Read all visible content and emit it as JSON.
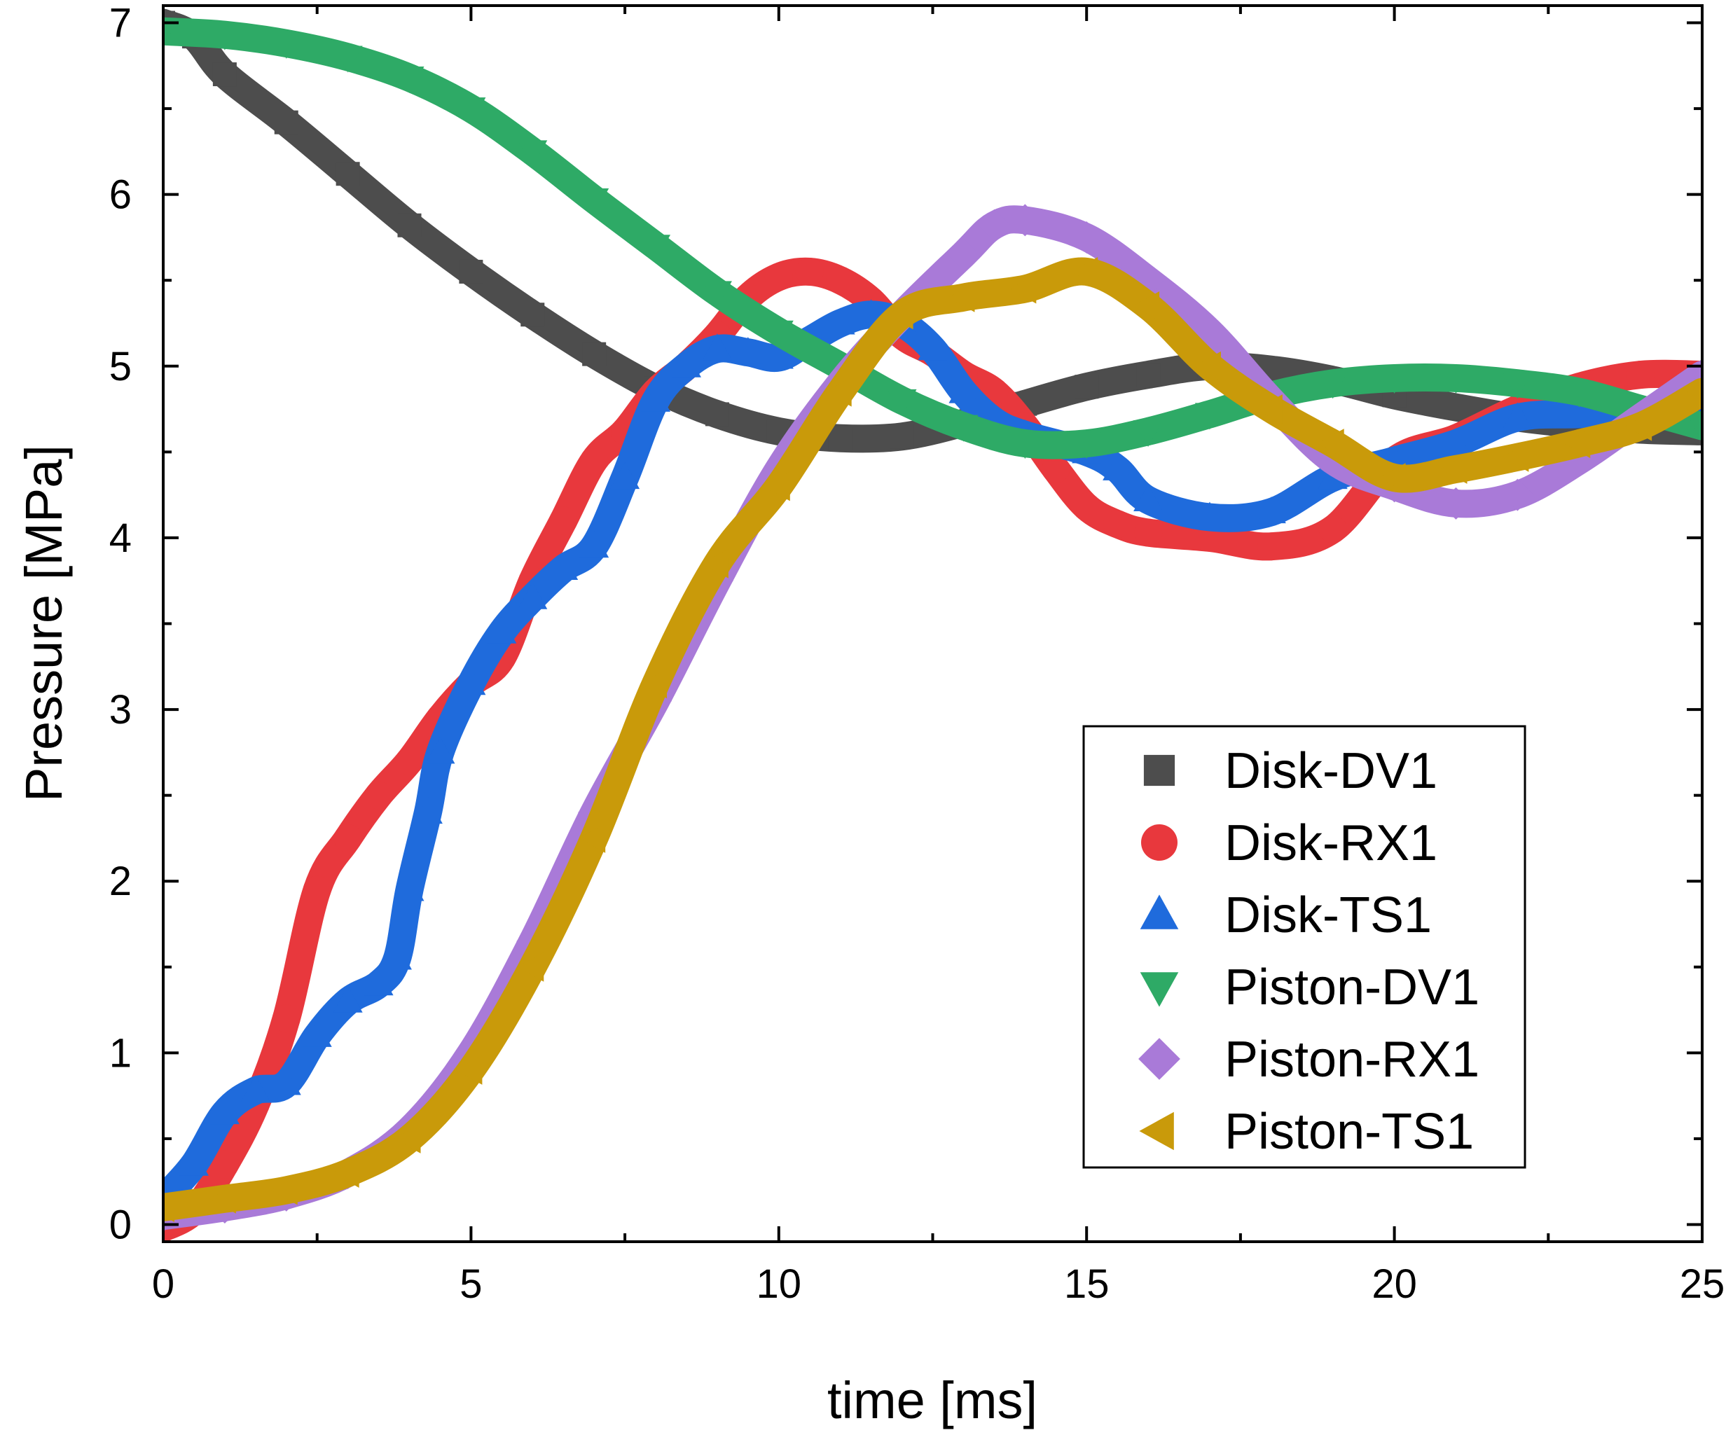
{
  "chart_data": {
    "type": "scatter",
    "title": "",
    "xlabel": "time [ms]",
    "ylabel": "Pressure [MPa]",
    "xlim": [
      0,
      25
    ],
    "ylim": [
      -0.1,
      7.1
    ],
    "xticks": [
      0,
      5,
      10,
      15,
      20,
      25
    ],
    "yticks": [
      0,
      1,
      2,
      3,
      4,
      5,
      6,
      7
    ],
    "x_minor_step": 2.5,
    "y_minor_step": 0.5,
    "grid": false,
    "legend_position": "bottom-right",
    "series": [
      {
        "name": "Disk-DV1",
        "marker": "square",
        "color": "#4d4d4d",
        "points": [
          [
            0,
            7.0
          ],
          [
            0.5,
            6.92
          ],
          [
            1,
            6.7
          ],
          [
            2,
            6.42
          ],
          [
            3,
            6.12
          ],
          [
            4,
            5.82
          ],
          [
            5,
            5.55
          ],
          [
            6,
            5.3
          ],
          [
            7,
            5.07
          ],
          [
            8,
            4.87
          ],
          [
            9,
            4.72
          ],
          [
            10,
            4.62
          ],
          [
            11,
            4.58
          ],
          [
            12,
            4.59
          ],
          [
            13,
            4.67
          ],
          [
            14,
            4.78
          ],
          [
            15,
            4.88
          ],
          [
            16,
            4.95
          ],
          [
            17,
            5.0
          ],
          [
            18,
            4.98
          ],
          [
            19,
            4.92
          ],
          [
            20,
            4.83
          ],
          [
            21,
            4.76
          ],
          [
            22,
            4.7
          ],
          [
            23,
            4.66
          ],
          [
            24,
            4.63
          ],
          [
            25,
            4.62
          ]
        ]
      },
      {
        "name": "Disk-RX1",
        "marker": "circle",
        "color": "#e8383d",
        "points": [
          [
            0,
            -0.02
          ],
          [
            0.5,
            0.08
          ],
          [
            1,
            0.35
          ],
          [
            1.5,
            0.7
          ],
          [
            2,
            1.2
          ],
          [
            2.5,
            1.95
          ],
          [
            3,
            2.25
          ],
          [
            3.5,
            2.5
          ],
          [
            4,
            2.7
          ],
          [
            4.5,
            2.95
          ],
          [
            5,
            3.15
          ],
          [
            5.5,
            3.3
          ],
          [
            6,
            3.75
          ],
          [
            6.5,
            4.1
          ],
          [
            7,
            4.45
          ],
          [
            7.5,
            4.62
          ],
          [
            8,
            4.85
          ],
          [
            8.5,
            5.0
          ],
          [
            9,
            5.18
          ],
          [
            9.5,
            5.4
          ],
          [
            10,
            5.52
          ],
          [
            10.5,
            5.55
          ],
          [
            11,
            5.5
          ],
          [
            11.5,
            5.38
          ],
          [
            12,
            5.18
          ],
          [
            12.5,
            5.08
          ],
          [
            13,
            4.95
          ],
          [
            13.5,
            4.85
          ],
          [
            14,
            4.65
          ],
          [
            14.5,
            4.4
          ],
          [
            15,
            4.18
          ],
          [
            15.5,
            4.08
          ],
          [
            16,
            4.03
          ],
          [
            17,
            4.0
          ],
          [
            18,
            3.95
          ],
          [
            19,
            4.05
          ],
          [
            20,
            4.45
          ],
          [
            21,
            4.58
          ],
          [
            22,
            4.75
          ],
          [
            23,
            4.88
          ],
          [
            24,
            4.95
          ],
          [
            25,
            4.95
          ]
        ]
      },
      {
        "name": "Disk-TS1",
        "marker": "triangle-up",
        "color": "#1f6bdc",
        "points": [
          [
            0,
            0.15
          ],
          [
            0.5,
            0.35
          ],
          [
            1,
            0.65
          ],
          [
            1.5,
            0.78
          ],
          [
            2,
            0.82
          ],
          [
            2.5,
            1.1
          ],
          [
            3,
            1.3
          ],
          [
            3.5,
            1.4
          ],
          [
            3.8,
            1.55
          ],
          [
            4,
            1.95
          ],
          [
            4.3,
            2.4
          ],
          [
            4.5,
            2.75
          ],
          [
            5,
            3.15
          ],
          [
            5.5,
            3.45
          ],
          [
            6,
            3.65
          ],
          [
            6.5,
            3.82
          ],
          [
            7,
            3.95
          ],
          [
            7.5,
            4.35
          ],
          [
            8,
            4.8
          ],
          [
            8.5,
            5.0
          ],
          [
            9,
            5.1
          ],
          [
            9.5,
            5.08
          ],
          [
            10,
            5.05
          ],
          [
            10.5,
            5.15
          ],
          [
            11,
            5.25
          ],
          [
            11.5,
            5.3
          ],
          [
            12,
            5.25
          ],
          [
            12.5,
            5.1
          ],
          [
            13,
            4.85
          ],
          [
            13.5,
            4.68
          ],
          [
            14,
            4.6
          ],
          [
            15,
            4.5
          ],
          [
            15.5,
            4.4
          ],
          [
            16,
            4.22
          ],
          [
            17,
            4.12
          ],
          [
            18,
            4.15
          ],
          [
            19,
            4.35
          ],
          [
            20,
            4.45
          ],
          [
            21,
            4.55
          ],
          [
            22,
            4.7
          ],
          [
            23,
            4.72
          ],
          [
            24,
            4.73
          ],
          [
            25,
            4.75
          ]
        ]
      },
      {
        "name": "Piston-DV1",
        "marker": "triangle-down",
        "color": "#2eaa66",
        "points": [
          [
            0,
            6.95
          ],
          [
            1,
            6.93
          ],
          [
            2,
            6.88
          ],
          [
            3,
            6.8
          ],
          [
            4,
            6.68
          ],
          [
            5,
            6.5
          ],
          [
            6,
            6.25
          ],
          [
            7,
            5.97
          ],
          [
            8,
            5.7
          ],
          [
            9,
            5.43
          ],
          [
            10,
            5.2
          ],
          [
            11,
            5.0
          ],
          [
            12,
            4.8
          ],
          [
            13,
            4.65
          ],
          [
            14,
            4.55
          ],
          [
            15,
            4.55
          ],
          [
            16,
            4.62
          ],
          [
            17,
            4.72
          ],
          [
            18,
            4.83
          ],
          [
            19,
            4.9
          ],
          [
            20,
            4.93
          ],
          [
            21,
            4.93
          ],
          [
            22,
            4.9
          ],
          [
            23,
            4.85
          ],
          [
            24,
            4.75
          ],
          [
            25,
            4.65
          ]
        ]
      },
      {
        "name": "Piston-RX1",
        "marker": "diamond",
        "color": "#a97ad8",
        "points": [
          [
            0,
            0.05
          ],
          [
            1,
            0.1
          ],
          [
            2,
            0.17
          ],
          [
            3,
            0.3
          ],
          [
            4,
            0.55
          ],
          [
            5,
            1.0
          ],
          [
            6,
            1.65
          ],
          [
            7,
            2.4
          ],
          [
            8,
            3.05
          ],
          [
            9,
            3.75
          ],
          [
            10,
            4.4
          ],
          [
            11,
            4.9
          ],
          [
            12,
            5.3
          ],
          [
            13,
            5.65
          ],
          [
            13.5,
            5.82
          ],
          [
            14,
            5.85
          ],
          [
            15,
            5.75
          ],
          [
            16,
            5.5
          ],
          [
            17,
            5.2
          ],
          [
            18,
            4.8
          ],
          [
            19,
            4.45
          ],
          [
            20,
            4.3
          ],
          [
            21,
            4.2
          ],
          [
            22,
            4.25
          ],
          [
            23,
            4.45
          ],
          [
            24,
            4.7
          ],
          [
            25,
            4.95
          ]
        ]
      },
      {
        "name": "Piston-TS1",
        "marker": "triangle-left",
        "color": "#c99a0a",
        "points": [
          [
            0,
            0.1
          ],
          [
            1,
            0.15
          ],
          [
            2,
            0.2
          ],
          [
            3,
            0.3
          ],
          [
            4,
            0.5
          ],
          [
            5,
            0.9
          ],
          [
            6,
            1.5
          ],
          [
            7,
            2.25
          ],
          [
            8,
            3.15
          ],
          [
            9,
            3.85
          ],
          [
            10,
            4.3
          ],
          [
            11,
            4.85
          ],
          [
            12,
            5.3
          ],
          [
            13,
            5.4
          ],
          [
            14,
            5.45
          ],
          [
            15,
            5.55
          ],
          [
            16,
            5.35
          ],
          [
            17,
            5.0
          ],
          [
            18,
            4.75
          ],
          [
            19,
            4.55
          ],
          [
            20,
            4.35
          ],
          [
            21,
            4.4
          ],
          [
            22,
            4.47
          ],
          [
            23,
            4.55
          ],
          [
            24,
            4.65
          ],
          [
            25,
            4.85
          ]
        ]
      }
    ]
  }
}
